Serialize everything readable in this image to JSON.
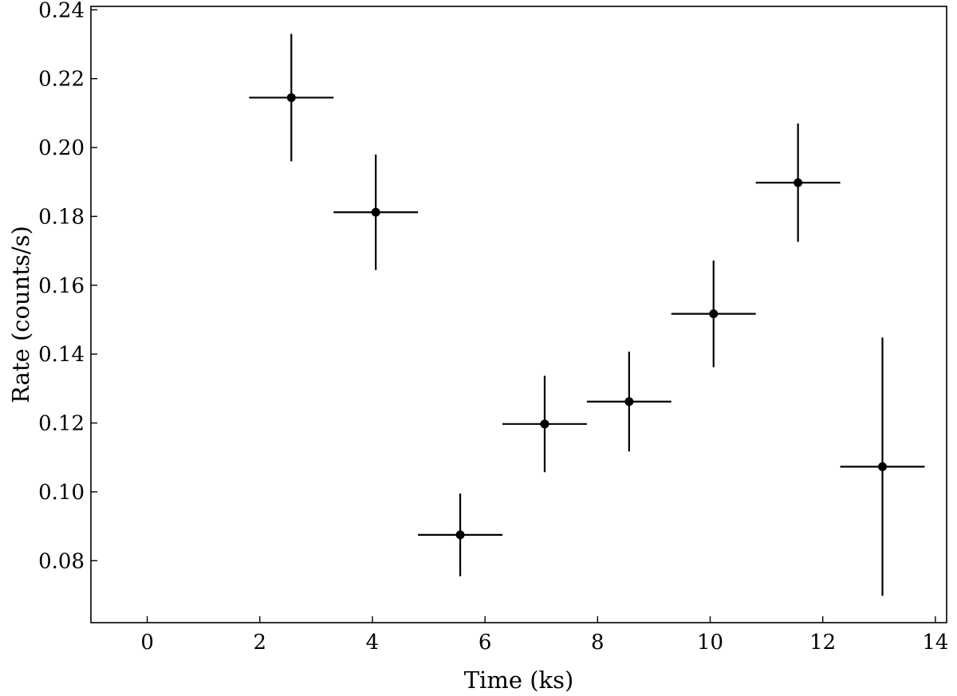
{
  "chart_data": {
    "type": "scatter",
    "title": "",
    "xlabel": "Time (ks)",
    "ylabel": "Rate (counts/s)",
    "xlim": [
      -1,
      14.2
    ],
    "ylim": [
      0.062,
      0.241
    ],
    "xticks": [
      0,
      2,
      4,
      6,
      8,
      10,
      12,
      14
    ],
    "yticks": [
      0.08,
      0.1,
      0.12,
      0.14,
      0.16,
      0.18,
      0.2,
      0.22,
      0.24
    ],
    "xtick_labels": [
      "0",
      "2",
      "4",
      "6",
      "8",
      "10",
      "12",
      "14"
    ],
    "ytick_labels": [
      "0.08",
      "0.10",
      "0.12",
      "0.14",
      "0.16",
      "0.18",
      "0.20",
      "0.22",
      "0.24"
    ],
    "grid": false,
    "color": "#000000",
    "points": [
      {
        "x": 2.56,
        "y": 0.2145,
        "xerr": 0.75,
        "yerr_low": 0.0185,
        "yerr_high": 0.0185
      },
      {
        "x": 4.06,
        "y": 0.1812,
        "xerr": 0.75,
        "yerr_low": 0.0168,
        "yerr_high": 0.0168
      },
      {
        "x": 5.56,
        "y": 0.0875,
        "xerr": 0.75,
        "yerr_low": 0.012,
        "yerr_high": 0.012
      },
      {
        "x": 7.06,
        "y": 0.1197,
        "xerr": 0.75,
        "yerr_low": 0.014,
        "yerr_high": 0.014
      },
      {
        "x": 8.56,
        "y": 0.1262,
        "xerr": 0.75,
        "yerr_low": 0.0145,
        "yerr_high": 0.0145
      },
      {
        "x": 10.06,
        "y": 0.1517,
        "xerr": 0.75,
        "yerr_low": 0.0155,
        "yerr_high": 0.0155
      },
      {
        "x": 11.56,
        "y": 0.1898,
        "xerr": 0.75,
        "yerr_low": 0.0172,
        "yerr_high": 0.0172
      },
      {
        "x": 13.06,
        "y": 0.1073,
        "xerr": 0.75,
        "yerr_low": 0.0375,
        "yerr_high": 0.0375
      }
    ]
  }
}
